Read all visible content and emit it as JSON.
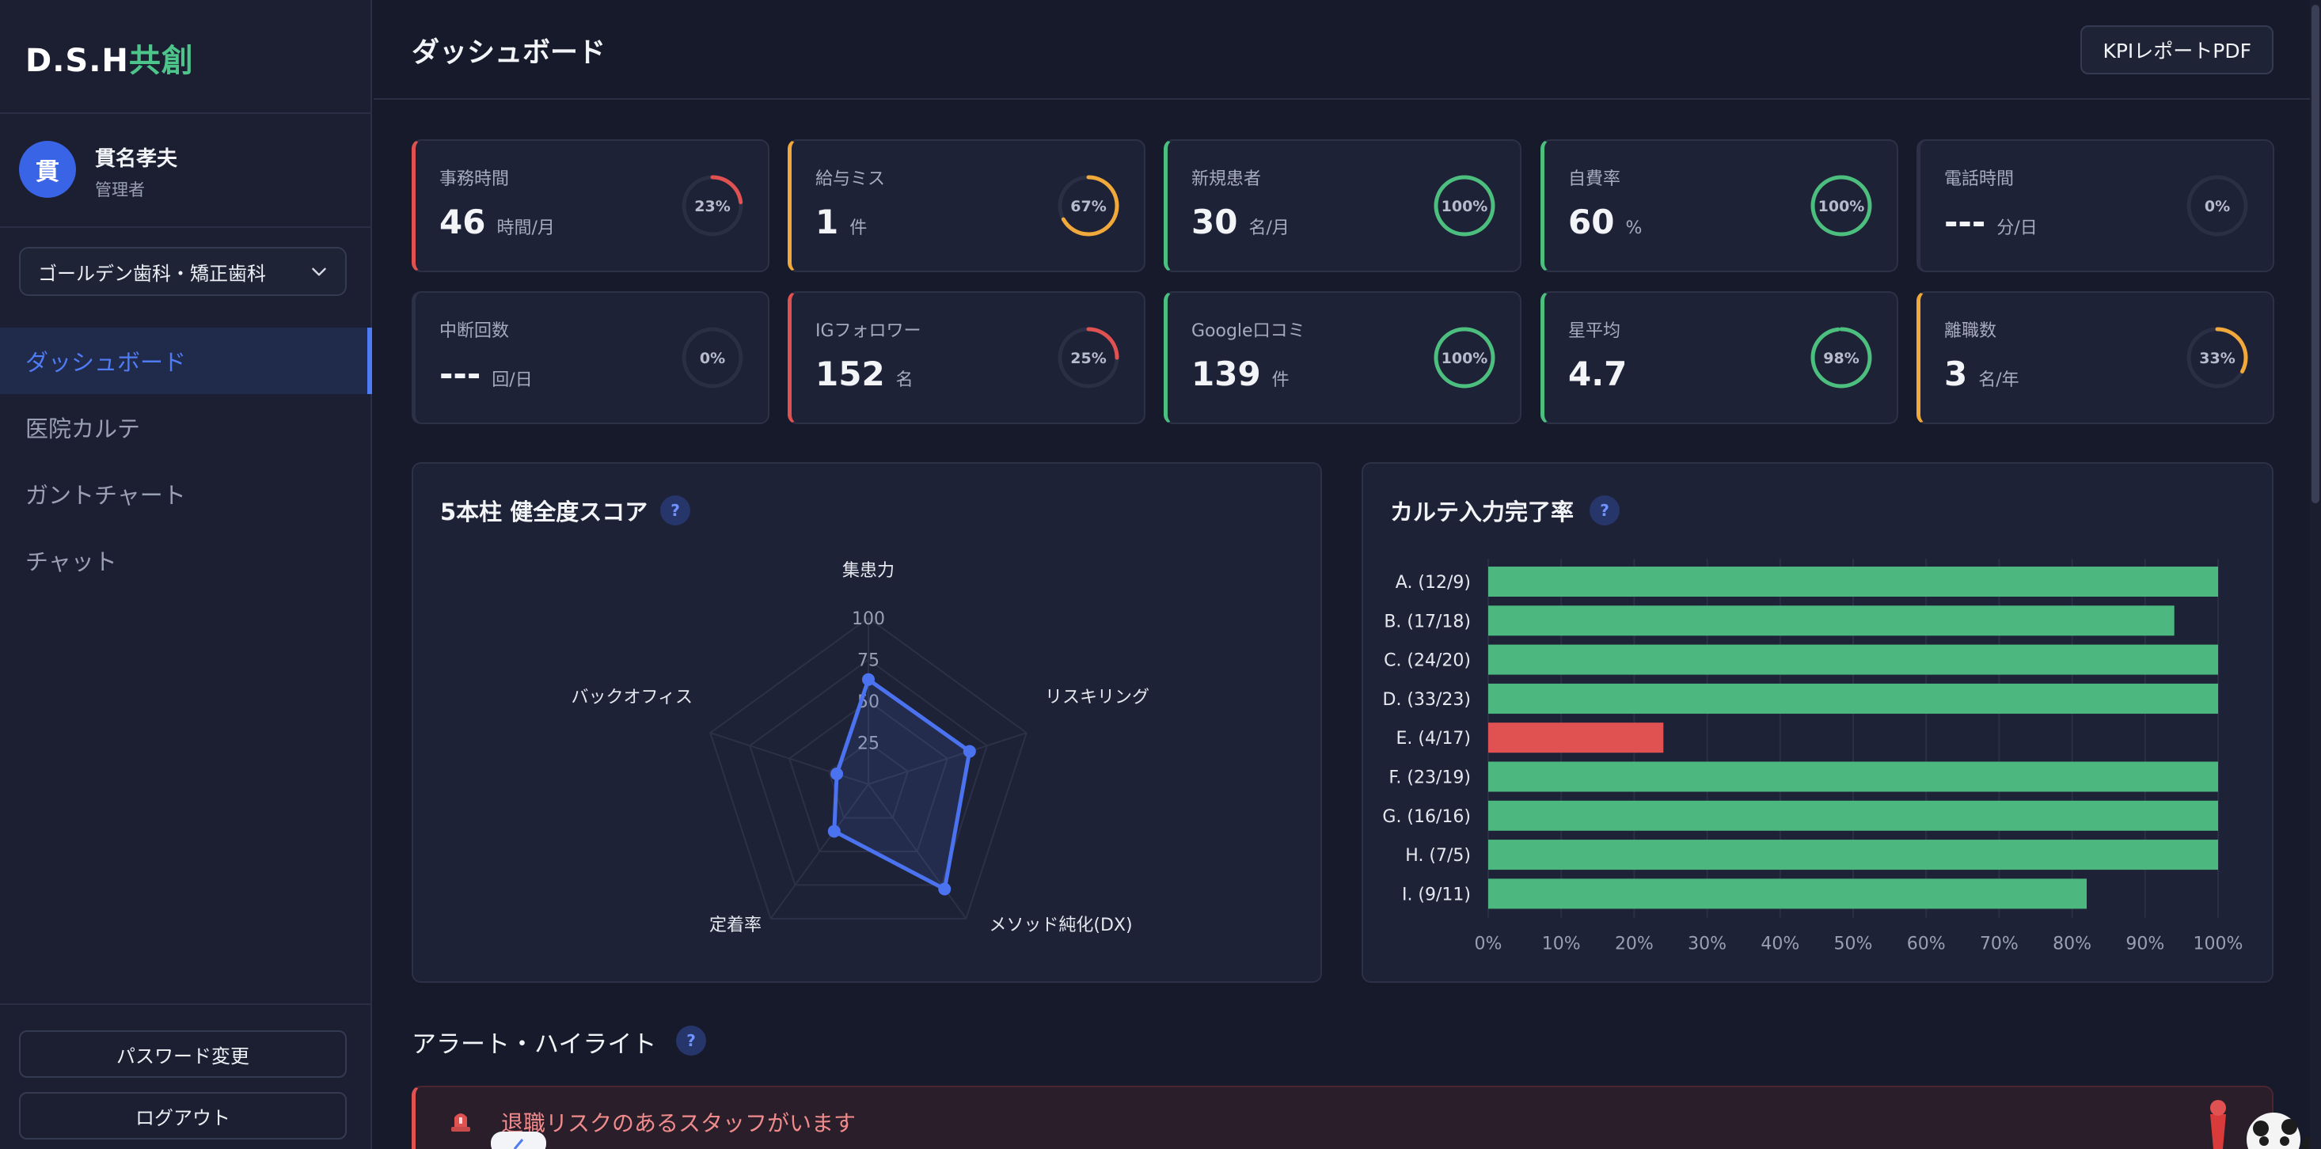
{
  "app": {
    "brand_main": "D.S.H",
    "brand_accent": "共創",
    "colors": {
      "accent": "#4f7cf5",
      "brand_green": "#4cc48a",
      "danger": "#e05252",
      "warning": "#f0a93a",
      "success": "#4cbf7f"
    }
  },
  "user": {
    "initial": "貫",
    "name": "貫名孝夫",
    "role": "管理者"
  },
  "clinic_select": {
    "selected": "ゴールデン歯科・矯正歯科"
  },
  "nav": [
    {
      "label": "ダッシュボード",
      "active": true
    },
    {
      "label": "医院カルテ",
      "active": false
    },
    {
      "label": "ガントチャート",
      "active": false
    },
    {
      "label": "チャット",
      "active": false
    }
  ],
  "sidebar_buttons": {
    "password": "パスワード変更",
    "logout": "ログアウト"
  },
  "header": {
    "title": "ダッシュボード",
    "kpi_button": "KPIレポートPDF"
  },
  "kpis": [
    {
      "label": "事務時間",
      "value": "46",
      "unit": "時間/月",
      "percent": 23,
      "pct_text": "23%",
      "status": "danger"
    },
    {
      "label": "給与ミス",
      "value": "1",
      "unit": "件",
      "percent": 67,
      "pct_text": "67%",
      "status": "warning"
    },
    {
      "label": "新規患者",
      "value": "30",
      "unit": "名/月",
      "percent": 100,
      "pct_text": "100%",
      "status": "success"
    },
    {
      "label": "自費率",
      "value": "60",
      "unit": "%",
      "percent": 100,
      "pct_text": "100%",
      "status": "success"
    },
    {
      "label": "電話時間",
      "value": "---",
      "unit": "分/日",
      "percent": 0,
      "pct_text": "0%",
      "status": "none"
    },
    {
      "label": "中断回数",
      "value": "---",
      "unit": "回/日",
      "percent": 0,
      "pct_text": "0%",
      "status": "none"
    },
    {
      "label": "IGフォロワー",
      "value": "152",
      "unit": "名",
      "percent": 25,
      "pct_text": "25%",
      "status": "danger"
    },
    {
      "label": "Google口コミ",
      "value": "139",
      "unit": "件",
      "percent": 100,
      "pct_text": "100%",
      "status": "success"
    },
    {
      "label": "星平均",
      "value": "4.7",
      "unit": "",
      "percent": 98,
      "pct_text": "98%",
      "status": "success"
    },
    {
      "label": "離職数",
      "value": "3",
      "unit": "名/年",
      "percent": 33,
      "pct_text": "33%",
      "status": "warning"
    }
  ],
  "radar": {
    "title": "5本柱 健全度スコア",
    "help": "?",
    "chart_data": {
      "type": "radar",
      "axes": [
        "集患力",
        "リスキリング",
        "メソッド純化(DX)",
        "定着率",
        "バックオフィス"
      ],
      "ticks": [
        "25",
        "50",
        "75",
        "100"
      ],
      "range": [
        0,
        100
      ],
      "series": [
        {
          "values": [
            63,
            64,
            78,
            35,
            20
          ]
        }
      ]
    }
  },
  "bars": {
    "title": "カルテ入力完了率",
    "help": "?",
    "chart_data": {
      "type": "bar",
      "orientation": "horizontal",
      "categories": [
        "A. (12/9)",
        "B. (17/18)",
        "C. (24/20)",
        "D. (33/23)",
        "E. (4/17)",
        "F. (23/19)",
        "G. (16/16)",
        "H. (7/5)",
        "I. (9/11)"
      ],
      "values": [
        100,
        94,
        100,
        100,
        24,
        100,
        100,
        100,
        82
      ],
      "xticks": [
        "0%",
        "10%",
        "20%",
        "30%",
        "40%",
        "50%",
        "60%",
        "70%",
        "80%",
        "90%",
        "100%"
      ],
      "xlim": [
        0,
        100
      ],
      "colors": {
        "ok": "#4cb87f",
        "low": "#e05252"
      }
    }
  },
  "alerts": {
    "section_title": "アラート・ハイライト",
    "help": "?",
    "items": [
      {
        "text": "退職リスクのあるスタッフがいます"
      }
    ]
  }
}
